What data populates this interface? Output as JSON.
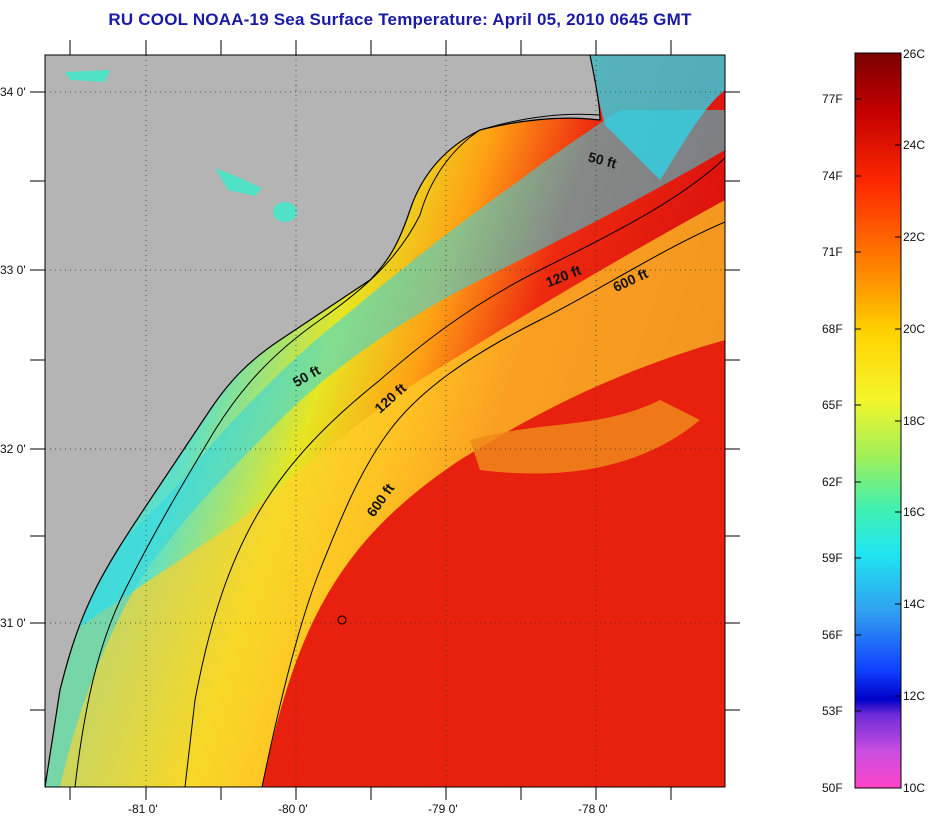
{
  "title": "RU COOL  NOAA-19  Sea Surface Temperature:  April 05, 2010 0645 GMT",
  "map": {
    "lat_labels": [
      "34 0'",
      "33 0'",
      "32 0'",
      "31 0'"
    ],
    "lon_labels": [
      "-81 0'",
      "-80 0'",
      "-79 0'",
      "-78 0'"
    ],
    "isobath_labels": [
      "50 ft",
      "120 ft",
      "600 ft",
      "50 ft",
      "120 ft",
      "600 ft"
    ],
    "colors": {
      "land": "#b4b4b4",
      "nearshore": "#2fd7e8",
      "shelf": "#f0e020",
      "gulf_stream": "#e60d0d"
    }
  },
  "colorbar": {
    "fahrenheit_labels": [
      "77F",
      "74F",
      "71F",
      "68F",
      "65F",
      "62F",
      "59F",
      "56F",
      "53F",
      "50F"
    ],
    "celsius_labels": [
      "26C",
      "24C",
      "22C",
      "20C",
      "18C",
      "16C",
      "14C",
      "12C",
      "10C"
    ]
  }
}
